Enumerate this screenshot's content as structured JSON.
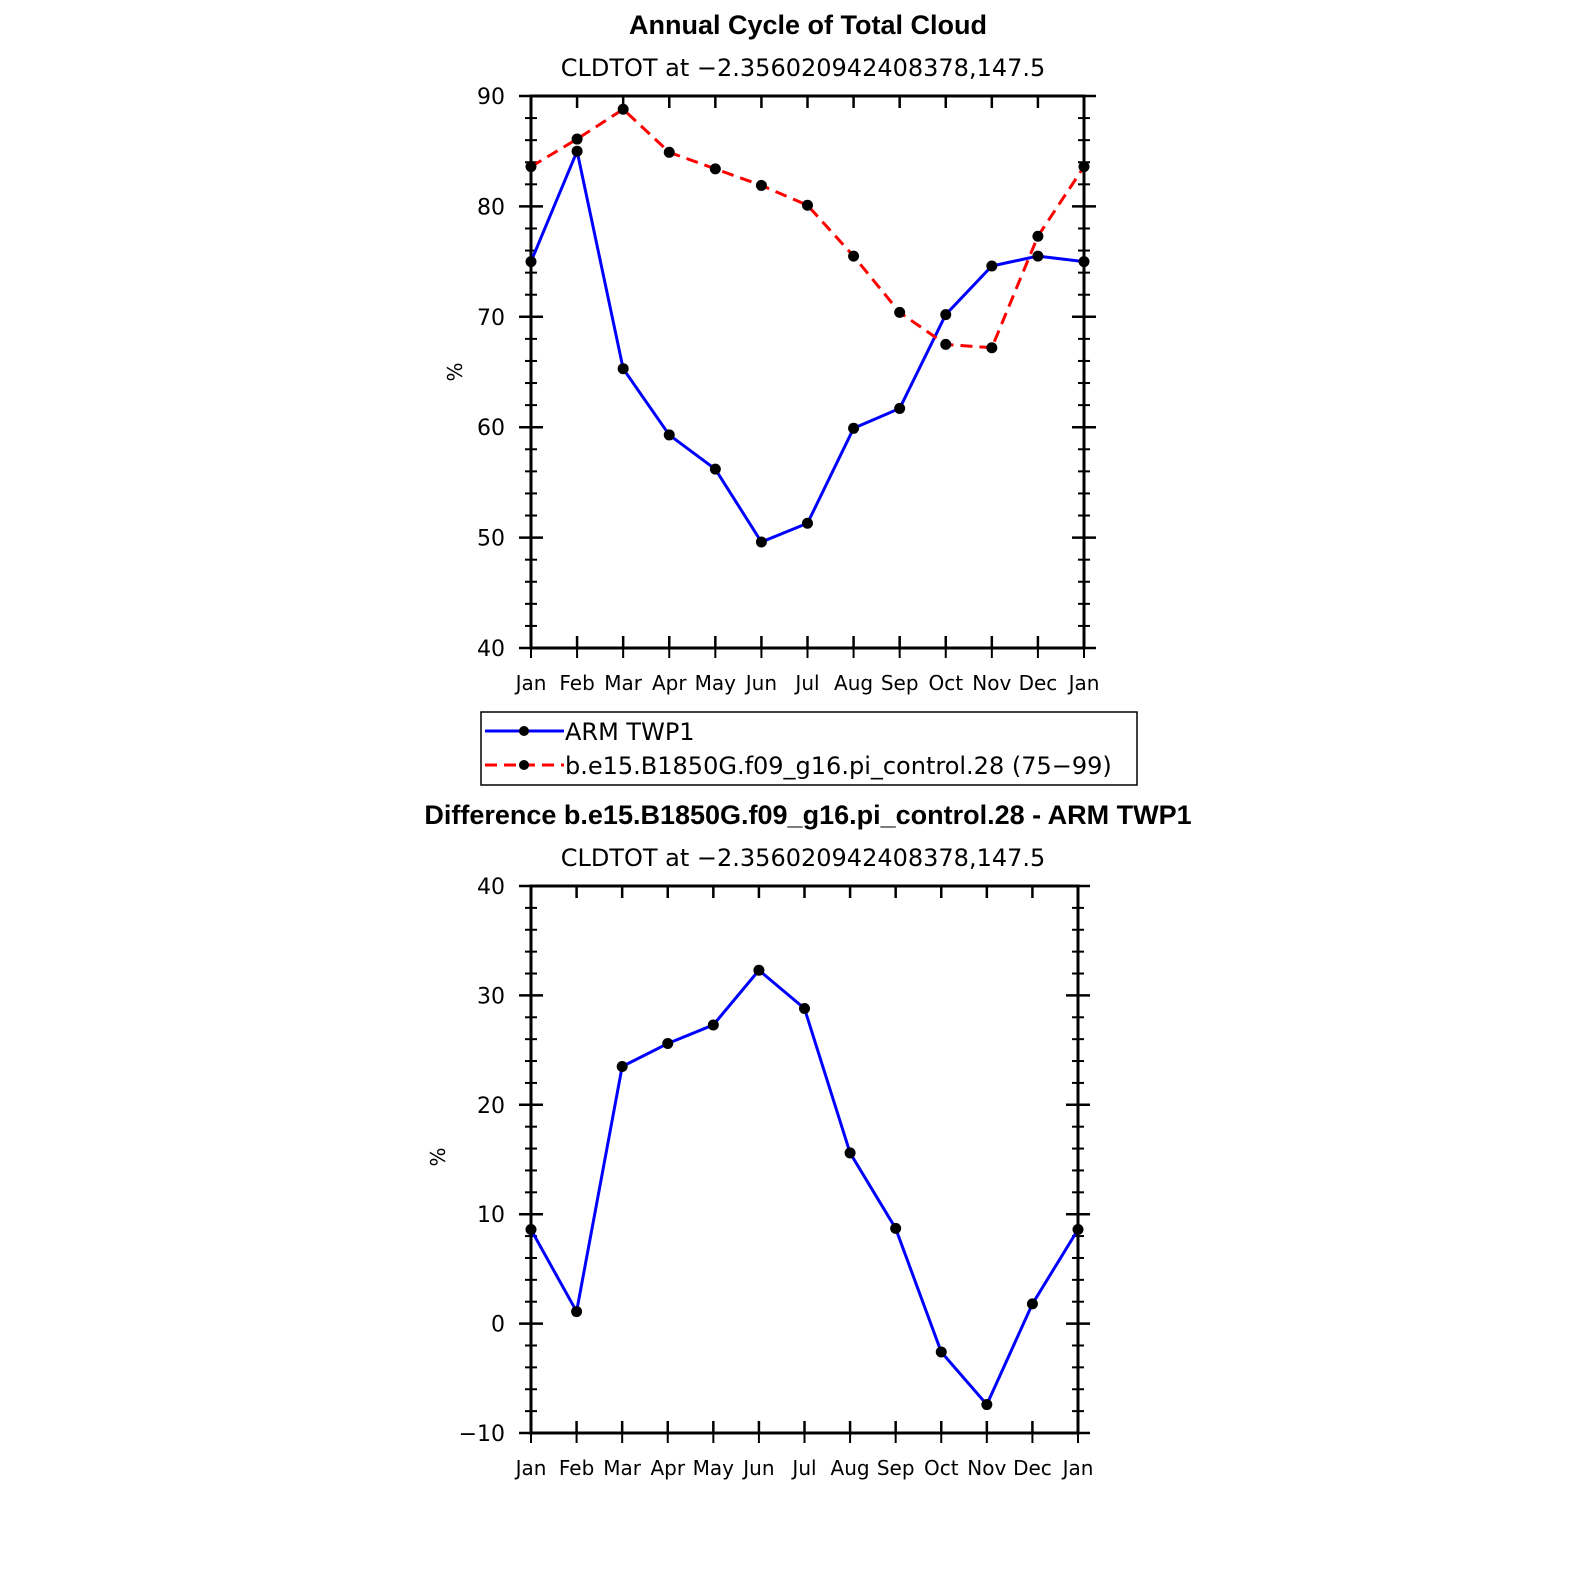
{
  "chart_data": [
    {
      "type": "line",
      "title": "Annual Cycle of Total Cloud",
      "subtitle": "CLDTOT at −2.356020942408378,147.5",
      "xlabel": "",
      "ylabel": "%",
      "categories": [
        "Jan",
        "Feb",
        "Mar",
        "Apr",
        "May",
        "Jun",
        "Jul",
        "Aug",
        "Sep",
        "Oct",
        "Nov",
        "Dec",
        "Jan"
      ],
      "ylim": [
        40,
        90
      ],
      "yticks": [
        40,
        50,
        60,
        70,
        80,
        90
      ],
      "ytick_labels": [
        "40",
        "50",
        "60",
        "70",
        "80",
        "90"
      ],
      "series": [
        {
          "name": "ARM  TWP1",
          "color": "#0000ff",
          "dash": "solid",
          "values": [
            75.0,
            85.0,
            65.3,
            59.3,
            56.2,
            49.6,
            51.3,
            59.9,
            61.7,
            70.2,
            74.6,
            75.5,
            75.0
          ]
        },
        {
          "name": "b.e15.B1850G.f09_g16.pi_control.28 (75−99)",
          "color": "#ff0000",
          "dash": "dashed",
          "values": [
            83.6,
            86.1,
            88.8,
            84.9,
            83.4,
            81.9,
            80.1,
            75.5,
            70.4,
            67.5,
            67.2,
            77.3,
            83.6
          ]
        }
      ]
    },
    {
      "type": "line",
      "title": "Difference b.e15.B1850G.f09_g16.pi_control.28 - ARM TWP1",
      "subtitle": "CLDTOT at −2.356020942408378,147.5",
      "xlabel": "",
      "ylabel": "%",
      "categories": [
        "Jan",
        "Feb",
        "Mar",
        "Apr",
        "May",
        "Jun",
        "Jul",
        "Aug",
        "Sep",
        "Oct",
        "Nov",
        "Dec",
        "Jan"
      ],
      "ylim": [
        -10,
        40
      ],
      "yticks": [
        -10,
        0,
        10,
        20,
        30,
        40
      ],
      "ytick_labels": [
        "−10",
        "0",
        "10",
        "20",
        "30",
        "40"
      ],
      "series": [
        {
          "name": "Difference",
          "color": "#0000ff",
          "dash": "solid",
          "values": [
            8.6,
            1.1,
            23.5,
            25.6,
            27.3,
            32.3,
            28.8,
            15.6,
            8.7,
            -2.6,
            -7.4,
            1.8,
            8.6
          ]
        }
      ]
    }
  ],
  "legend": {
    "entries": [
      {
        "label": "ARM  TWP1",
        "color": "#0000ff",
        "dash": "solid"
      },
      {
        "label": "b.e15.B1850G.f09_g16.pi_control.28 (75−99)",
        "color": "#ff0000",
        "dash": "dashed"
      }
    ]
  },
  "colors": {
    "axis": "#000000",
    "marker": "#000000"
  }
}
